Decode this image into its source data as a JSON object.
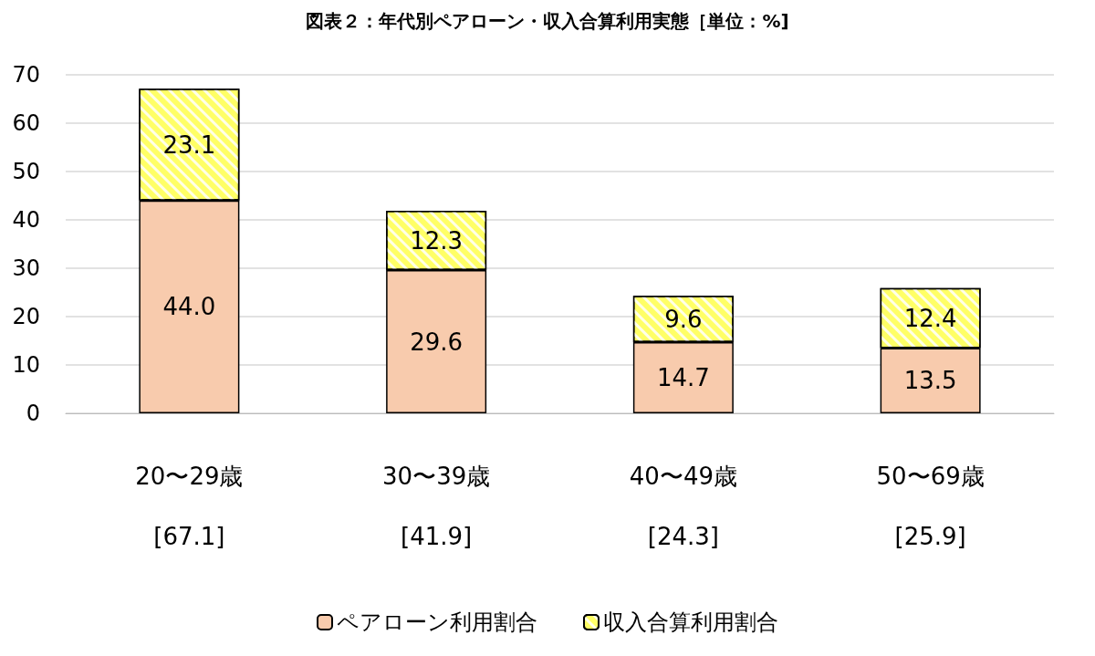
{
  "chart_data": {
    "type": "bar",
    "title": "図表２：年代別ペアローン・収入合算利用実態［単位：%]",
    "categories": [
      "20〜29歳",
      "30〜39歳",
      "40〜49歳",
      "50〜69歳"
    ],
    "stacked": true,
    "ylim": [
      0,
      70
    ],
    "yticks": [
      0,
      10,
      20,
      30,
      40,
      50,
      60,
      70
    ],
    "grid": "y",
    "legend": "bottom",
    "annotations": [
      "[67.1]",
      "[41.9]",
      "[24.3]",
      "[25.9]"
    ],
    "series": [
      {
        "name": "ペアローン利用割合",
        "color": "#f8cbad",
        "values": [
          44.0,
          29.6,
          14.7,
          13.5
        ],
        "value_labels": [
          "44.0",
          "29.6",
          "14.7",
          "13.5"
        ]
      },
      {
        "name": "収入合算利用割合",
        "color": "#ffff66",
        "values": [
          23.1,
          12.3,
          9.6,
          12.4
        ],
        "value_labels": [
          "23.1",
          "12.3",
          "9.6",
          "12.4"
        ]
      }
    ]
  }
}
